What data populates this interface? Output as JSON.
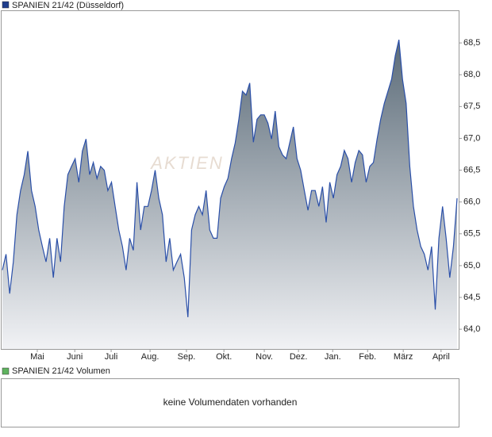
{
  "chart_data": {
    "type": "area",
    "title": "SPANIEN 21/42 (Düsseldorf)",
    "color": "#2a4fa8",
    "legend_color": "#1f3d8c",
    "watermark": "AKTIEN",
    "values": [
      64.93,
      65.18,
      64.56,
      65.06,
      65.8,
      66.18,
      66.43,
      66.8,
      66.18,
      65.93,
      65.56,
      65.3,
      65.06,
      65.43,
      64.81,
      65.43,
      65.06,
      65.93,
      66.43,
      66.56,
      66.68,
      66.31,
      66.8,
      66.99,
      66.43,
      66.62,
      66.37,
      66.56,
      66.5,
      66.18,
      66.31,
      65.93,
      65.56,
      65.3,
      64.93,
      65.43,
      65.24,
      66.31,
      65.56,
      65.93,
      65.93,
      66.18,
      66.5,
      66.06,
      65.8,
      65.06,
      65.43,
      64.93,
      65.06,
      65.18,
      64.81,
      64.19,
      65.56,
      65.8,
      65.93,
      65.8,
      66.18,
      65.56,
      65.43,
      65.43,
      66.06,
      66.24,
      66.37,
      66.68,
      66.93,
      67.3,
      67.74,
      67.68,
      67.87,
      66.94,
      67.3,
      67.37,
      67.37,
      67.24,
      66.99,
      67.43,
      66.87,
      66.74,
      66.68,
      66.93,
      67.18,
      66.68,
      66.5,
      66.18,
      65.87,
      66.18,
      66.18,
      65.93,
      66.24,
      65.68,
      66.31,
      66.06,
      66.43,
      66.56,
      66.81,
      66.68,
      66.31,
      66.62,
      66.81,
      66.74,
      66.31,
      66.56,
      66.62,
      66.99,
      67.3,
      67.55,
      67.74,
      67.93,
      68.3,
      68.55,
      67.93,
      67.55,
      66.56,
      65.93,
      65.56,
      65.3,
      65.18,
      64.93,
      65.3,
      64.31,
      65.43,
      65.93,
      65.43,
      64.81,
      65.3,
      66.06
    ],
    "xlim": [
      0,
      125
    ],
    "xticks": [
      {
        "value": 9.6,
        "label": "Mai"
      },
      {
        "value": 19.9,
        "label": "Juni"
      },
      {
        "value": 29.9,
        "label": "Juli"
      },
      {
        "value": 40.6,
        "label": "Aug."
      },
      {
        "value": 50.6,
        "label": "Sep."
      },
      {
        "value": 60.9,
        "label": "Okt."
      },
      {
        "value": 72,
        "label": "Nov."
      },
      {
        "value": 81.4,
        "label": "Dez."
      },
      {
        "value": 90.8,
        "label": "Jan."
      },
      {
        "value": 100.4,
        "label": "Feb."
      },
      {
        "value": 110.2,
        "label": "März"
      },
      {
        "value": 120.6,
        "label": "April"
      }
    ],
    "ylim": [
      63.69,
      69.0
    ],
    "yticks": [
      {
        "value": 64.0,
        "label": "64,0"
      },
      {
        "value": 64.5,
        "label": "64,5"
      },
      {
        "value": 65.0,
        "label": "65,0"
      },
      {
        "value": 65.5,
        "label": "65,5"
      },
      {
        "value": 66.0,
        "label": "66,0"
      },
      {
        "value": 66.5,
        "label": "66,5"
      },
      {
        "value": 67.0,
        "label": "67,0"
      },
      {
        "value": 67.5,
        "label": "67,5"
      },
      {
        "value": 68.0,
        "label": "68,0"
      },
      {
        "value": 68.5,
        "label": "68,5"
      }
    ],
    "volume": {
      "title": "SPANIEN 21/42 Volumen",
      "color": "#5fb35f",
      "message": "keine Volumendaten vorhanden"
    }
  }
}
